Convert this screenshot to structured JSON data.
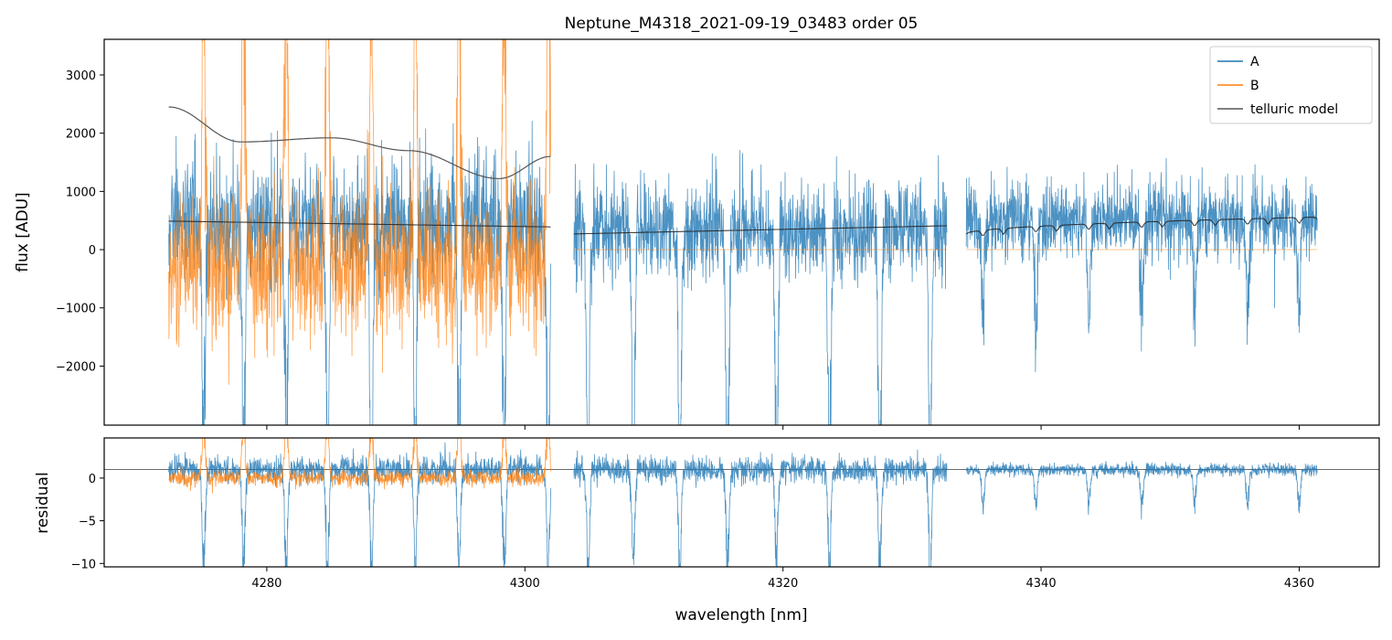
{
  "chart_data": {
    "type": "line",
    "title": "Neptune_M4318_2021-09-19_03483  order 05",
    "xlabel": "wavelength [nm]",
    "xlim": [
      4267.4,
      4366.2
    ],
    "xticks": [
      4280,
      4300,
      4320,
      4340,
      4360
    ],
    "panels": [
      {
        "name": "flux",
        "ylabel": "flux [ADU]",
        "ylim": [
          -3014,
          3612
        ],
        "yticks": [
          -2000,
          -1000,
          0,
          1000,
          2000,
          3000
        ],
        "yticklabels": [
          "−2000",
          "−1000",
          "0",
          "1000",
          "2000",
          "3000"
        ]
      },
      {
        "name": "residual",
        "ylabel": "residual",
        "ylim": [
          -10.4,
          4.7
        ],
        "yticks": [
          -10,
          -5,
          0
        ],
        "yticklabels": [
          "−10",
          "−5",
          "0"
        ],
        "reference_line": 1
      }
    ],
    "legend": {
      "placement": "top-right",
      "entries": [
        {
          "label": "A",
          "color": "#1f77b4"
        },
        {
          "label": "B",
          "color": "#ff7f0e"
        },
        {
          "label": "telluric model",
          "color": "#555555"
        }
      ]
    },
    "segments": [
      {
        "x": [
          4272.4,
          4302.0
        ],
        "A_level": 450,
        "A_noise": 380,
        "B_level": -300,
        "B_noise": 600,
        "fit": [
          490,
          390
        ],
        "lines": [
          4275.1,
          4278.2,
          4281.5,
          4284.7,
          4288.1,
          4291.5,
          4294.9,
          4298.4,
          4301.8
        ]
      },
      {
        "x": [
          4303.8,
          4332.7
        ],
        "A_level": 330,
        "A_noise": 280,
        "B_level": 0,
        "fit": [
          270,
          410
        ],
        "lines": [
          4304.9,
          4308.4,
          4312.0,
          4315.7,
          4319.5,
          4323.6,
          4327.5,
          4331.4
        ]
      },
      {
        "x": [
          4334.2,
          4361.4
        ],
        "A_level": 520,
        "A_noise": 220,
        "B_level": 0,
        "fit": [
          270,
          560
        ],
        "lines": [
          4335.5,
          4339.6,
          4343.7,
          4347.8,
          4351.9,
          4356.0,
          4360.0
        ]
      }
    ],
    "telluric_model": {
      "x": [
        4272.4,
        4278,
        4285,
        4291,
        4298,
        4302
      ],
      "y": [
        2450,
        1850,
        1920,
        1700,
        1220,
        1600
      ]
    }
  }
}
